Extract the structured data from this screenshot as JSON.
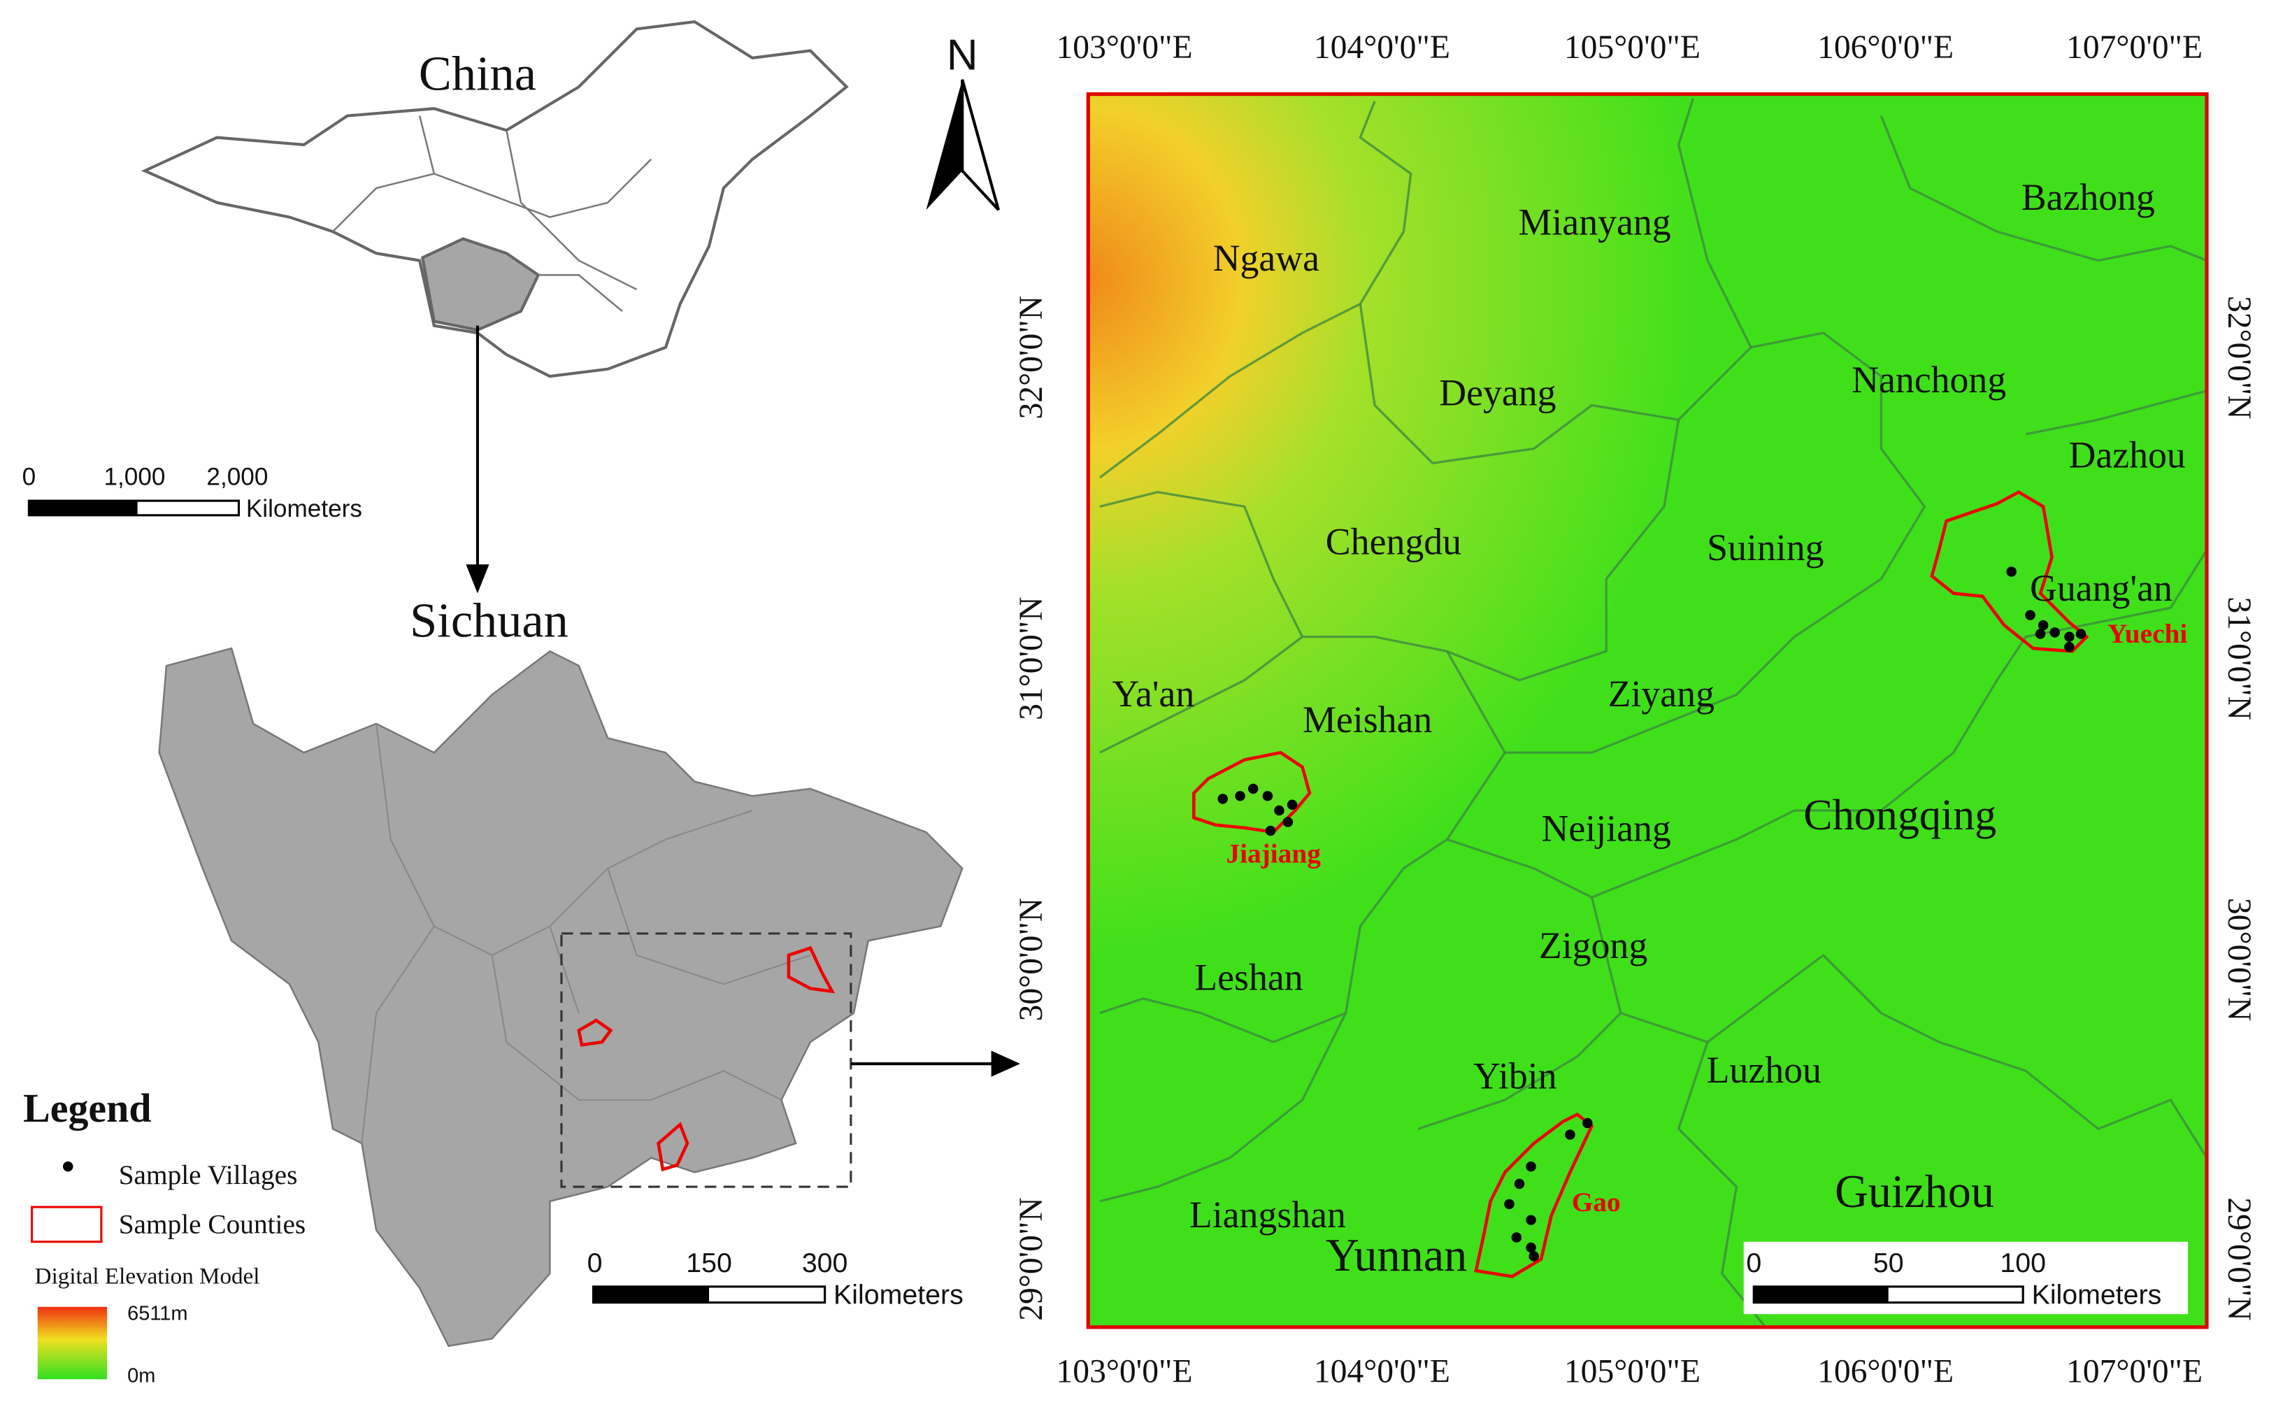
{
  "inset": {
    "china_title": "China",
    "sichuan_title": "Sichuan",
    "china_scale": {
      "ticks": [
        "0",
        "1,000",
        "2,000"
      ],
      "unit": "Kilometers"
    },
    "sichuan_scale": {
      "ticks": [
        "0",
        "150",
        "300"
      ],
      "unit": "Kilometers"
    }
  },
  "legend": {
    "title": "Legend",
    "items": [
      "Sample Villages",
      "Sample Counties"
    ],
    "dem_title": "Digital Elevation Model",
    "dem_max": "6511m",
    "dem_min": "0m"
  },
  "map": {
    "north": "N",
    "lon_labels": [
      "103°0'0\"E",
      "104°0'0\"E",
      "105°0'0\"E",
      "106°0'0\"E",
      "107°0'0\"E"
    ],
    "lat_labels": [
      "32°0'0\"N",
      "31°0'0\"N",
      "30°0'0\"N",
      "29°0'0\"N"
    ],
    "places": [
      "Ngawa",
      "Mianyang",
      "Bazhong",
      "Deyang",
      "Nanchong",
      "Dazhou",
      "Chengdu",
      "Suining",
      "Guang'an",
      "Ya'an",
      "Meishan",
      "Ziyang",
      "Chongqing",
      "Neijiang",
      "Zigong",
      "Leshan",
      "Yibin",
      "Luzhou",
      "Liangshan",
      "Guizhou",
      "Yunnan"
    ],
    "counties": [
      "Jiajiang",
      "Yuechi",
      "Gao"
    ],
    "scale": {
      "ticks": [
        "0",
        "50",
        "100"
      ],
      "unit": "Kilometers"
    }
  }
}
